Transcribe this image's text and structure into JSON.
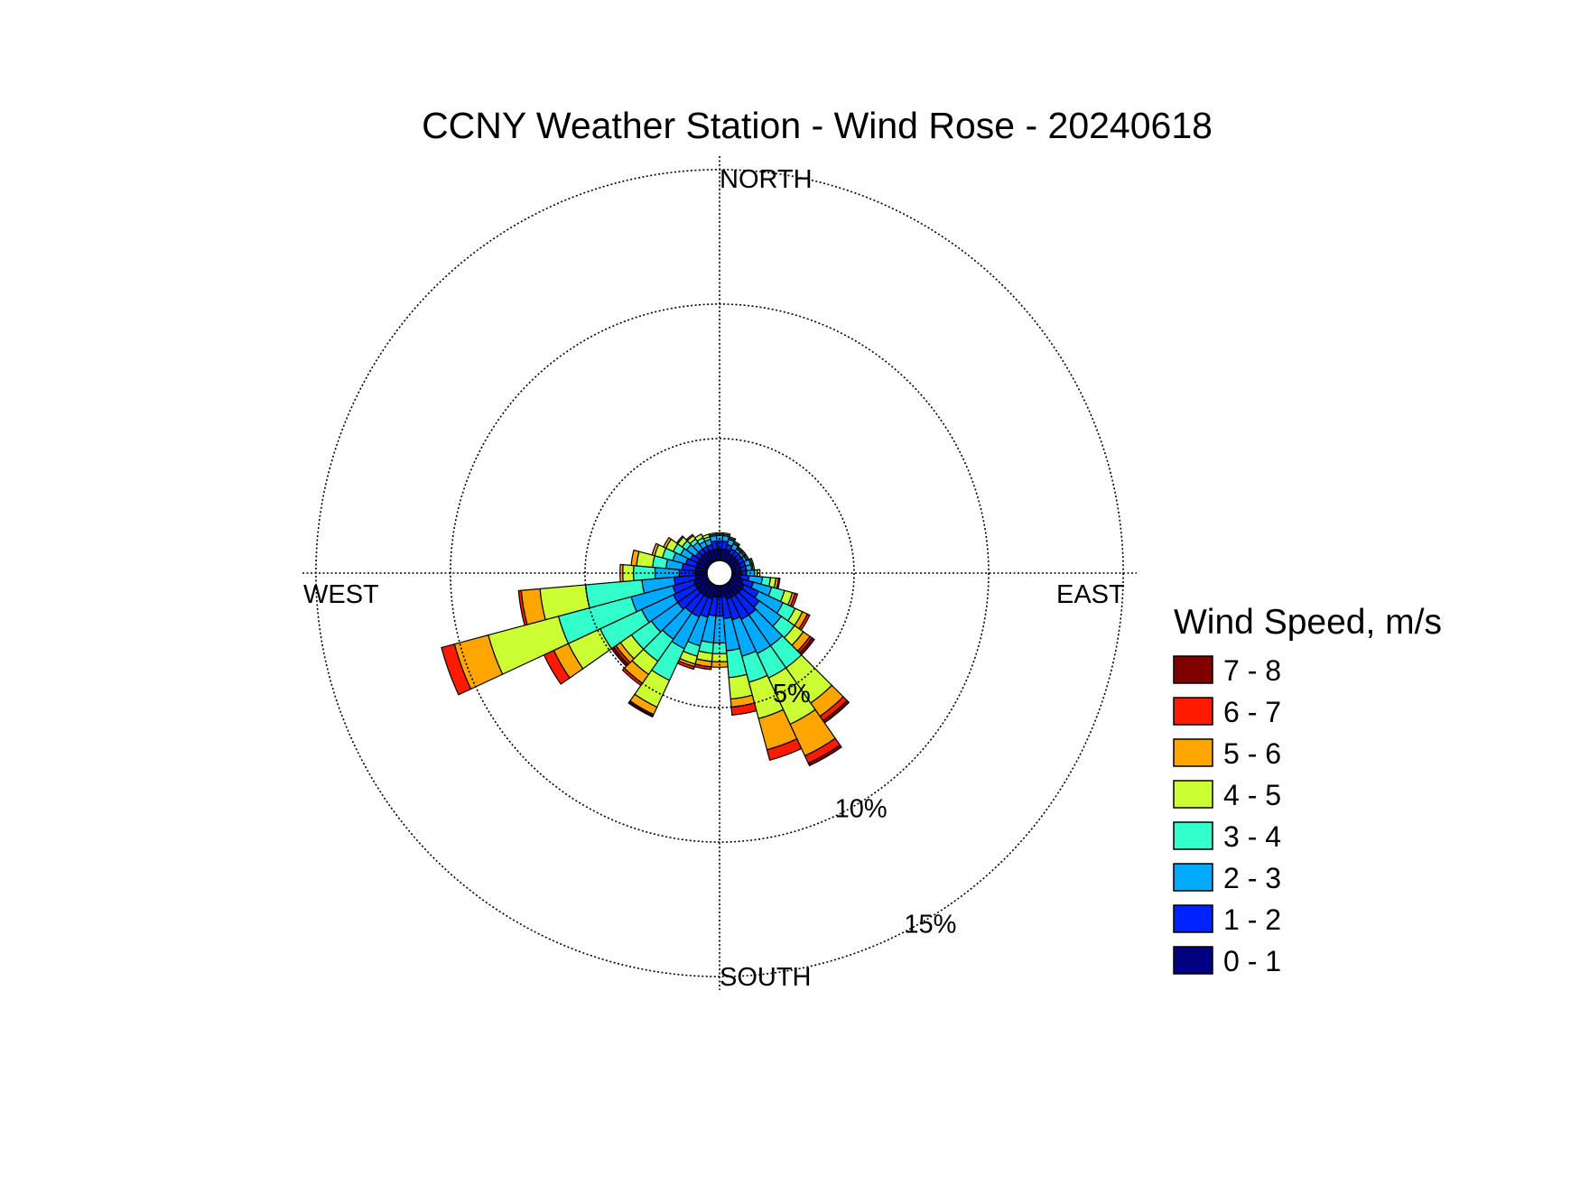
{
  "chart_data": {
    "type": "wind-rose",
    "title": "CCNY Weather Station - Wind Rose - 20240618",
    "direction_labels": {
      "north": "NORTH",
      "south": "SOUTH",
      "east": "EAST",
      "west": "WEST"
    },
    "rings": [
      {
        "value": 5,
        "label": "5%"
      },
      {
        "value": 10,
        "label": "10%"
      },
      {
        "value": 15,
        "label": "15%"
      }
    ],
    "rmax": 15.5,
    "legend": {
      "title": "Wind Speed, m/s",
      "placement": "right",
      "bins": [
        {
          "label": "7 - 8",
          "color": "#800000"
        },
        {
          "label": "6 - 7",
          "color": "#ff1a00"
        },
        {
          "label": "5 - 6",
          "color": "#ffa500"
        },
        {
          "label": "4 - 5",
          "color": "#ccff33"
        },
        {
          "label": "3 - 4",
          "color": "#33ffcc"
        },
        {
          "label": "2 - 3",
          "color": "#00aaff"
        },
        {
          "label": "1 - 2",
          "color": "#0022ff"
        },
        {
          "label": "0 - 1",
          "color": "#000080"
        }
      ]
    },
    "colors_low_to_high": [
      "#000080",
      "#0022ff",
      "#00aaff",
      "#33ffcc",
      "#ccff33",
      "#ffa500",
      "#ff1a00",
      "#800000"
    ],
    "sector_width_deg": 10,
    "sectors": [
      {
        "dir": 0,
        "cum": [
          0.9,
          1.2,
          1.4,
          1.45,
          1.5,
          1.5,
          1.5,
          1.5
        ]
      },
      {
        "dir": 10,
        "cum": [
          0.9,
          1.2,
          1.4,
          1.45,
          1.5,
          1.5,
          1.5,
          1.5
        ]
      },
      {
        "dir": 20,
        "cum": [
          0.9,
          1.1,
          1.3,
          1.35,
          1.4,
          1.4,
          1.4,
          1.4
        ]
      },
      {
        "dir": 30,
        "cum": [
          0.8,
          1.0,
          1.2,
          1.25,
          1.3,
          1.3,
          1.3,
          1.3
        ]
      },
      {
        "dir": 40,
        "cum": [
          0.8,
          1.0,
          1.1,
          1.15,
          1.2,
          1.2,
          1.2,
          1.2
        ]
      },
      {
        "dir": 50,
        "cum": [
          0.8,
          1.0,
          1.1,
          1.15,
          1.2,
          1.2,
          1.2,
          1.2
        ]
      },
      {
        "dir": 60,
        "cum": [
          0.8,
          1.0,
          1.1,
          1.15,
          1.2,
          1.2,
          1.2,
          1.2
        ]
      },
      {
        "dir": 70,
        "cum": [
          0.8,
          1.0,
          1.2,
          1.25,
          1.3,
          1.3,
          1.3,
          1.3
        ]
      },
      {
        "dir": 80,
        "cum": [
          0.8,
          1.0,
          1.2,
          1.25,
          1.3,
          1.3,
          1.3,
          1.3
        ]
      },
      {
        "dir": 90,
        "cum": [
          0.8,
          1.0,
          1.3,
          1.4,
          1.5,
          1.5,
          1.5,
          1.5
        ]
      },
      {
        "dir": 100,
        "cum": [
          0.8,
          1.1,
          1.6,
          1.9,
          2.1,
          2.2,
          2.25,
          2.25
        ]
      },
      {
        "dir": 110,
        "cum": [
          0.9,
          1.3,
          2.0,
          2.5,
          2.8,
          2.9,
          3.0,
          3.0
        ]
      },
      {
        "dir": 120,
        "cum": [
          1.0,
          1.6,
          2.6,
          3.1,
          3.4,
          3.6,
          3.7,
          3.7
        ]
      },
      {
        "dir": 130,
        "cum": [
          1.0,
          1.8,
          2.8,
          3.4,
          3.8,
          4.1,
          4.2,
          4.3
        ]
      },
      {
        "dir": 140,
        "cum": [
          1.0,
          1.9,
          3.3,
          4.3,
          5.9,
          6.5,
          6.7,
          6.8
        ]
      },
      {
        "dir": 150,
        "cum": [
          1.0,
          1.9,
          3.3,
          4.3,
          6.2,
          7.5,
          7.8,
          7.9
        ]
      },
      {
        "dir": 160,
        "cum": [
          1.0,
          1.8,
          3.2,
          4.2,
          5.6,
          6.8,
          7.2,
          7.2
        ]
      },
      {
        "dir": 170,
        "cum": [
          0.9,
          1.7,
          2.9,
          3.9,
          4.7,
          5.0,
          5.3,
          5.3
        ]
      },
      {
        "dir": 180,
        "cum": [
          0.9,
          1.6,
          2.6,
          3.0,
          3.3,
          3.5,
          3.5,
          3.5
        ]
      },
      {
        "dir": 190,
        "cum": [
          0.9,
          1.6,
          2.6,
          3.0,
          3.3,
          3.5,
          3.6,
          3.6
        ]
      },
      {
        "dir": 200,
        "cum": [
          1.0,
          1.7,
          2.8,
          3.2,
          3.5,
          3.6,
          3.7,
          3.7
        ]
      },
      {
        "dir": 210,
        "cum": [
          1.0,
          1.8,
          3.1,
          4.4,
          5.5,
          5.8,
          5.85,
          5.9
        ]
      },
      {
        "dir": 220,
        "cum": [
          1.0,
          1.8,
          3.0,
          4.0,
          4.6,
          5.0,
          5.1,
          5.1
        ]
      },
      {
        "dir": 230,
        "cum": [
          1.0,
          1.9,
          3.1,
          4.0,
          4.5,
          4.7,
          4.8,
          4.9
        ]
      },
      {
        "dir": 240,
        "cum": [
          1.0,
          1.9,
          3.2,
          4.9,
          6.2,
          6.8,
          7.2,
          7.2
        ]
      },
      {
        "dir": 250,
        "cum": [
          1.0,
          1.8,
          3.4,
          6.2,
          8.9,
          10.2,
          10.7,
          10.7
        ]
      },
      {
        "dir": 260,
        "cum": [
          0.9,
          1.7,
          2.9,
          5.0,
          6.7,
          7.4,
          7.5,
          7.5
        ]
      },
      {
        "dir": 270,
        "cum": [
          0.9,
          1.5,
          2.4,
          3.2,
          3.6,
          3.7,
          3.7,
          3.7
        ]
      },
      {
        "dir": 280,
        "cum": [
          0.9,
          1.4,
          2.0,
          2.5,
          3.1,
          3.3,
          3.3,
          3.3
        ]
      },
      {
        "dir": 290,
        "cum": [
          0.9,
          1.3,
          1.8,
          2.2,
          2.5,
          2.6,
          2.6,
          2.6
        ]
      },
      {
        "dir": 300,
        "cum": [
          0.9,
          1.2,
          1.6,
          1.9,
          2.2,
          2.3,
          2.3,
          2.3
        ]
      },
      {
        "dir": 310,
        "cum": [
          0.9,
          1.1,
          1.5,
          1.7,
          1.9,
          1.95,
          1.95,
          1.95
        ]
      },
      {
        "dir": 320,
        "cum": [
          0.9,
          1.1,
          1.4,
          1.55,
          1.7,
          1.75,
          1.75,
          1.75
        ]
      },
      {
        "dir": 330,
        "cum": [
          0.9,
          1.1,
          1.3,
          1.45,
          1.6,
          1.6,
          1.6,
          1.6
        ]
      },
      {
        "dir": 340,
        "cum": [
          0.9,
          1.1,
          1.3,
          1.4,
          1.5,
          1.5,
          1.5,
          1.5
        ]
      },
      {
        "dir": 350,
        "cum": [
          0.9,
          1.2,
          1.4,
          1.45,
          1.5,
          1.5,
          1.5,
          1.5
        ]
      }
    ]
  }
}
